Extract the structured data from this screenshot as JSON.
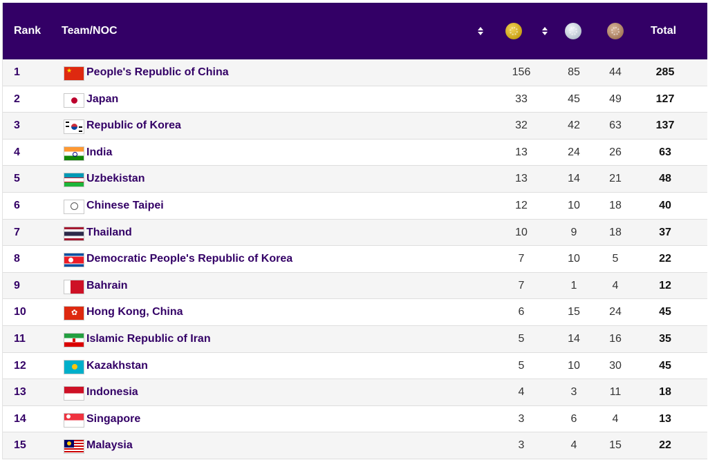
{
  "header": {
    "rank": "Rank",
    "team": "Team/NOC",
    "total": "Total",
    "medal_icons": [
      "gold-medal-icon",
      "silver-medal-icon",
      "bronze-medal-icon"
    ]
  },
  "rows": [
    {
      "rank": "1",
      "name": "People's Republic of China",
      "gold": "156",
      "silver": "85",
      "bronze": "44",
      "total": "285",
      "flag": "china-flag-icon"
    },
    {
      "rank": "2",
      "name": "Japan",
      "gold": "33",
      "silver": "45",
      "bronze": "49",
      "total": "127",
      "flag": "japan-flag-icon"
    },
    {
      "rank": "3",
      "name": "Republic of Korea",
      "gold": "32",
      "silver": "42",
      "bronze": "63",
      "total": "137",
      "flag": "korea-flag-icon"
    },
    {
      "rank": "4",
      "name": "India",
      "gold": "13",
      "silver": "24",
      "bronze": "26",
      "total": "63",
      "flag": "india-flag-icon"
    },
    {
      "rank": "5",
      "name": "Uzbekistan",
      "gold": "13",
      "silver": "14",
      "bronze": "21",
      "total": "48",
      "flag": "uzbekistan-flag-icon"
    },
    {
      "rank": "6",
      "name": "Chinese Taipei",
      "gold": "12",
      "silver": "10",
      "bronze": "18",
      "total": "40",
      "flag": "chinese-taipei-flag-icon"
    },
    {
      "rank": "7",
      "name": "Thailand",
      "gold": "10",
      "silver": "9",
      "bronze": "18",
      "total": "37",
      "flag": "thailand-flag-icon"
    },
    {
      "rank": "8",
      "name": "Democratic People's Republic of Korea",
      "gold": "7",
      "silver": "10",
      "bronze": "5",
      "total": "22",
      "flag": "dprk-flag-icon"
    },
    {
      "rank": "9",
      "name": "Bahrain",
      "gold": "7",
      "silver": "1",
      "bronze": "4",
      "total": "12",
      "flag": "bahrain-flag-icon"
    },
    {
      "rank": "10",
      "name": "Hong Kong, China",
      "gold": "6",
      "silver": "15",
      "bronze": "24",
      "total": "45",
      "flag": "hong-kong-flag-icon"
    },
    {
      "rank": "11",
      "name": "Islamic Republic of Iran",
      "gold": "5",
      "silver": "14",
      "bronze": "16",
      "total": "35",
      "flag": "iran-flag-icon"
    },
    {
      "rank": "12",
      "name": "Kazakhstan",
      "gold": "5",
      "silver": "10",
      "bronze": "30",
      "total": "45",
      "flag": "kazakhstan-flag-icon"
    },
    {
      "rank": "13",
      "name": "Indonesia",
      "gold": "4",
      "silver": "3",
      "bronze": "11",
      "total": "18",
      "flag": "indonesia-flag-icon"
    },
    {
      "rank": "14",
      "name": "Singapore",
      "gold": "3",
      "silver": "6",
      "bronze": "4",
      "total": "13",
      "flag": "singapore-flag-icon"
    },
    {
      "rank": "15",
      "name": "Malaysia",
      "gold": "3",
      "silver": "4",
      "bronze": "15",
      "total": "22",
      "flag": "malaysia-flag-icon"
    }
  ]
}
